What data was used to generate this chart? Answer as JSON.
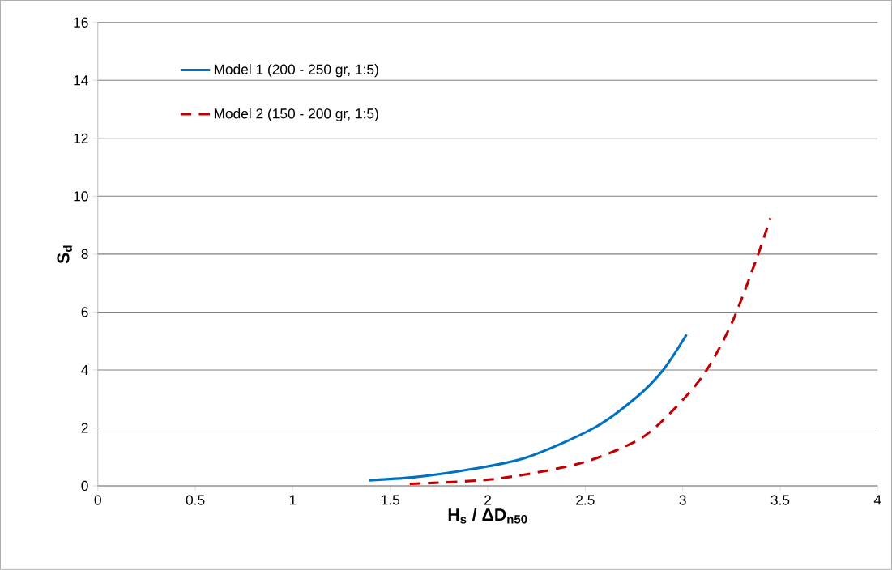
{
  "chart_data": {
    "type": "line",
    "xlabel": "H$_{s}$ / ΔD$_{n50}$",
    "ylabel": "S$_{d}$",
    "xlim": [
      0,
      4
    ],
    "xticks": [
      0,
      0.5,
      1,
      1.5,
      2,
      2.5,
      3,
      3.5,
      4
    ],
    "ylim": [
      0,
      16
    ],
    "yticks": [
      0,
      2,
      4,
      6,
      8,
      10,
      12,
      14,
      16
    ],
    "grid": "y",
    "legend": "top left",
    "marker": "none",
    "series": [
      {
        "name": "Model 1 (200 - 250 gr, 1:5)",
        "color": "#0070c0",
        "line_style": "solid",
        "x": [
          1.39,
          1.61,
          1.83,
          2.19,
          2.545,
          2.76,
          2.9,
          3.02
        ],
        "values": [
          0.19,
          0.29,
          0.48,
          0.96,
          2.0,
          3.04,
          4.0,
          5.22
        ]
      },
      {
        "name": "Model 2 (150 - 200 gr, 1:5)",
        "color": "#c00000",
        "line_style": "dashed",
        "x": [
          1.6,
          2.04,
          2.47,
          2.76,
          2.9,
          3.06,
          3.15,
          3.26,
          3.38,
          3.45
        ],
        "values": [
          0.07,
          0.24,
          0.77,
          1.54,
          2.27,
          3.42,
          4.29,
          5.74,
          7.86,
          9.25
        ]
      }
    ]
  }
}
